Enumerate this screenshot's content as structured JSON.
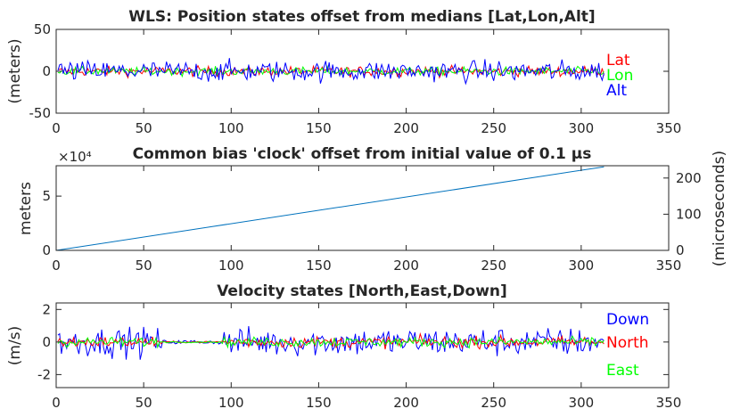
{
  "chart_data": [
    {
      "type": "line",
      "title": "WLS: Position states offset from medians [Lat,Lon,Alt]",
      "xlabel": "",
      "ylabel": "(meters)",
      "xlim": [
        0,
        350
      ],
      "ylim": [
        -50,
        50
      ],
      "xticks": [
        "0",
        "50",
        "100",
        "150",
        "200",
        "250",
        "300",
        "350"
      ],
      "yticks": [
        "-50",
        "0",
        "50"
      ],
      "legend_placement": "right",
      "series": [
        {
          "name": "Lat",
          "color": "#ff0000",
          "amplitude": 6,
          "x_end": 313
        },
        {
          "name": "Lon",
          "color": "#00ff00",
          "amplitude": 5,
          "x_end": 313
        },
        {
          "name": "Alt",
          "color": "#0000ff",
          "amplitude": 13,
          "x_end": 313
        }
      ]
    },
    {
      "type": "line",
      "title": "Common bias 'clock' offset from initial value of 0.1 μs",
      "xlabel": "",
      "ylabel": "meters",
      "ylabel_right": "(microseconds)",
      "y_exponent": "×10⁴",
      "xlim": [
        0,
        350
      ],
      "ylim": [
        0,
        7.8
      ],
      "ylim_right": [
        0,
        234
      ],
      "xticks": [
        "0",
        "50",
        "100",
        "150",
        "200",
        "250",
        "300",
        "350"
      ],
      "yticks": [
        "0",
        "5"
      ],
      "yticks_right": [
        "0",
        "100",
        "200"
      ],
      "series": [
        {
          "name": "",
          "color": "#0072bd",
          "x": [
            0,
            313
          ],
          "y": [
            0,
            7.7
          ]
        }
      ]
    },
    {
      "type": "line",
      "title": "Velocity states [North,East,Down]",
      "xlabel": "",
      "ylabel": "(m/s)",
      "xlim": [
        0,
        350
      ],
      "ylim": [
        -2.8,
        2.4
      ],
      "xticks": [
        "0",
        "50",
        "100",
        "150",
        "200",
        "250",
        "300",
        "350"
      ],
      "yticks": [
        "-2",
        "0",
        "2"
      ],
      "legend_placement": "right",
      "series": [
        {
          "name": "Down",
          "color": "#0000ff",
          "amplitude": 0.9,
          "x_end": 313
        },
        {
          "name": "North",
          "color": "#ff0000",
          "amplitude": 0.35,
          "x_end": 313
        },
        {
          "name": "East",
          "color": "#00ff00",
          "amplitude": 0.3,
          "x_end": 313
        }
      ]
    }
  ]
}
